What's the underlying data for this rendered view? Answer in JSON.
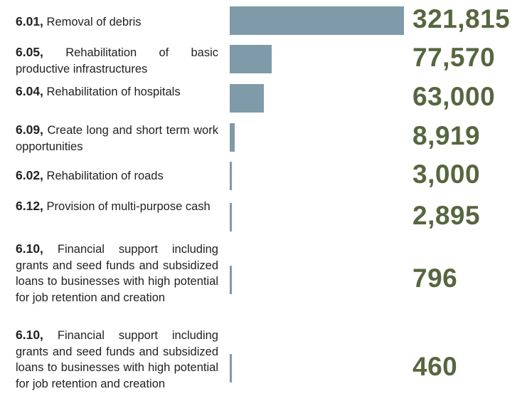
{
  "chart_data": {
    "type": "bar",
    "codes": [
      "6.01,",
      "6.05,",
      "6.04,",
      "6.09,",
      "6.02,",
      "6.12,",
      "6.10,",
      "6.10,"
    ],
    "categories": [
      "Removal of debris",
      "Rehabilitation of basic productive infrastructures",
      "Rehabilitation of hospitals",
      "Create long and short term work opportunities",
      "Rehabilitation of roads",
      "Provision of multi-purpose cash",
      "Financial support including grants and seed funds and subsidized loans to businesses with high potential for job retention and creation",
      "Financial support including grants and seed funds and subsidized loans to businesses with high potential for job retention and creation"
    ],
    "values": [
      321815,
      77570,
      63000,
      8919,
      3000,
      2895,
      796,
      460
    ],
    "value_labels": [
      "321,815",
      "77,570",
      "63,000",
      "8,919",
      "3,000",
      "2,895",
      "796",
      "460"
    ],
    "color": "#7f9baa",
    "label_color": "#56663f"
  }
}
